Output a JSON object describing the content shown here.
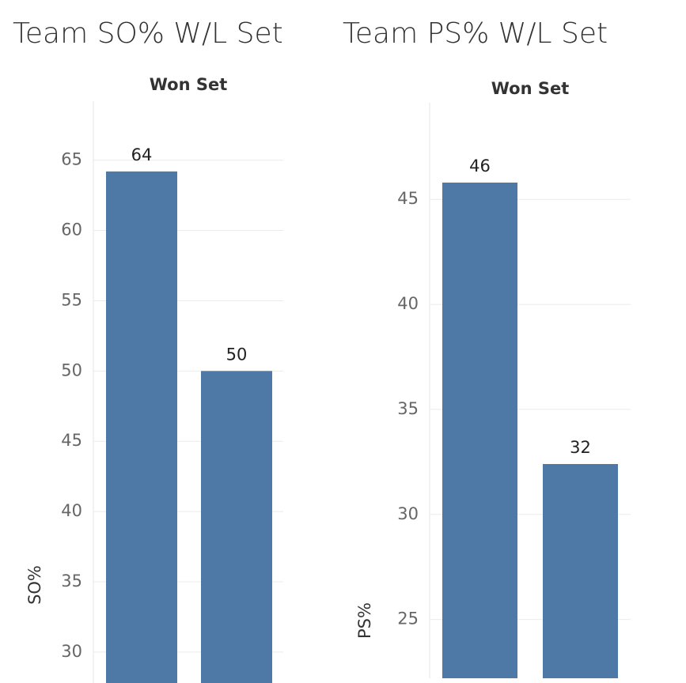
{
  "chart_data": [
    {
      "type": "bar",
      "title": "Team SO% W/L Set",
      "column_header": "Won Set",
      "y_label": "SO%",
      "categories": [
        null,
        null
      ],
      "values": [
        64.2,
        50
      ],
      "value_labels": [
        "64",
        "50"
      ],
      "color": "#4e79a7",
      "ylim": [
        27.8,
        69.2
      ],
      "yticks": [
        30,
        35,
        40,
        45,
        50,
        55,
        60,
        65
      ],
      "grid": true
    },
    {
      "type": "bar",
      "title": "Team PS% W/L Set",
      "column_header": "Won Set",
      "y_label": "PS%",
      "categories": [
        null,
        null
      ],
      "values": [
        45.8,
        32.4
      ],
      "value_labels": [
        "46",
        "32"
      ],
      "color": "#4e79a7",
      "ylim": [
        22.2,
        49.6
      ],
      "yticks": [
        25,
        30,
        35,
        40,
        45
      ],
      "grid": true
    }
  ]
}
